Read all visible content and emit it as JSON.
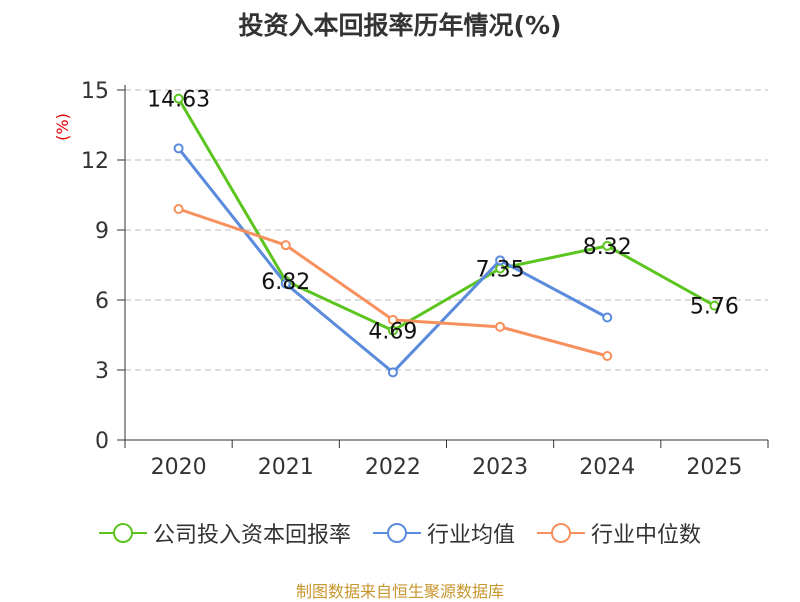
{
  "chart_data": {
    "type": "line",
    "title": "投资入本回报率历年情况(%)",
    "ylabel": "(%)",
    "xlabel": "",
    "ylim": [
      0,
      15
    ],
    "yticks": [
      "0",
      "3",
      "6",
      "9",
      "12",
      "15"
    ],
    "categories": [
      "2020",
      "2021",
      "2022",
      "2023",
      "2024",
      "2025"
    ],
    "series": [
      {
        "name": "公司投入资本回报率",
        "color": "#5cc41e",
        "values": [
          14.63,
          6.82,
          4.69,
          7.35,
          8.32,
          5.76
        ],
        "labels": [
          "14.63",
          "6.82",
          "4.69",
          "7.35",
          "8.32",
          "5.76"
        ]
      },
      {
        "name": "行业均值",
        "color": "#5a8bdc",
        "values": [
          12.5,
          6.7,
          2.9,
          7.7,
          5.25,
          null
        ]
      },
      {
        "name": "行业中位数",
        "color": "#f7905c",
        "values": [
          9.9,
          8.35,
          5.15,
          4.85,
          3.6,
          null
        ]
      }
    ],
    "grid": true,
    "legend_position": "bottom"
  },
  "source": "制图数据来自恒生聚源数据库"
}
